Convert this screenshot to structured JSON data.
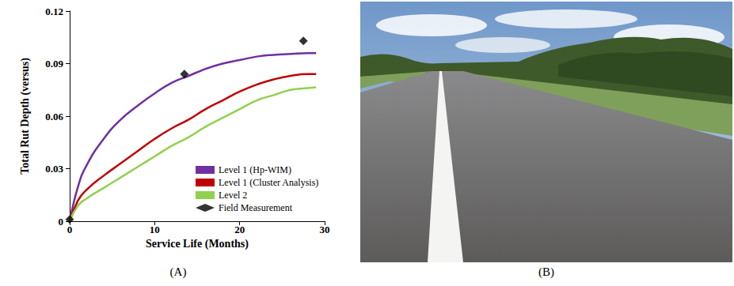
{
  "chart_data": {
    "type": "line",
    "panel_label": "(A)",
    "x_label": "Service Life (Months)",
    "y_label": "Total Rut Depth (versus)",
    "x": [
      0,
      1,
      2,
      4,
      6,
      8,
      10,
      12,
      14,
      16,
      18,
      20,
      22,
      24,
      26,
      28,
      29
    ],
    "series": [
      {
        "name": "Level 1 (Hp-WIM)",
        "color": "#7030a0",
        "type": "line",
        "values": [
          0,
          0.02,
          0.032,
          0.047,
          0.058,
          0.066,
          0.073,
          0.079,
          0.083,
          0.087,
          0.09,
          0.092,
          0.094,
          0.095,
          0.0955,
          0.096,
          0.096
        ]
      },
      {
        "name": "Level 1 (Cluster Analysis)",
        "color": "#c00000",
        "type": "line",
        "values": [
          0,
          0.012,
          0.018,
          0.026,
          0.033,
          0.04,
          0.047,
          0.053,
          0.058,
          0.064,
          0.069,
          0.074,
          0.078,
          0.081,
          0.083,
          0.084,
          0.084
        ]
      },
      {
        "name": "Level 2",
        "color": "#92d050",
        "type": "line",
        "values": [
          0,
          0.009,
          0.013,
          0.019,
          0.025,
          0.031,
          0.037,
          0.043,
          0.048,
          0.054,
          0.059,
          0.064,
          0.069,
          0.072,
          0.075,
          0.076,
          0.0765
        ]
      },
      {
        "name": "Field Measurement",
        "color": "#000000",
        "type": "scatter",
        "marker": "diamond",
        "x": [
          0,
          13.5,
          27.5
        ],
        "values": [
          0.001,
          0.084,
          0.103
        ]
      }
    ],
    "xlim": [
      0,
      30
    ],
    "xticks": [
      0,
      10,
      20,
      30
    ],
    "ylim": [
      0,
      0.12
    ],
    "yticks": [
      0,
      0.03,
      0.06,
      0.09,
      0.12
    ],
    "grid": false,
    "legend": "lower right"
  },
  "photo": {
    "panel_label": "(B)"
  }
}
